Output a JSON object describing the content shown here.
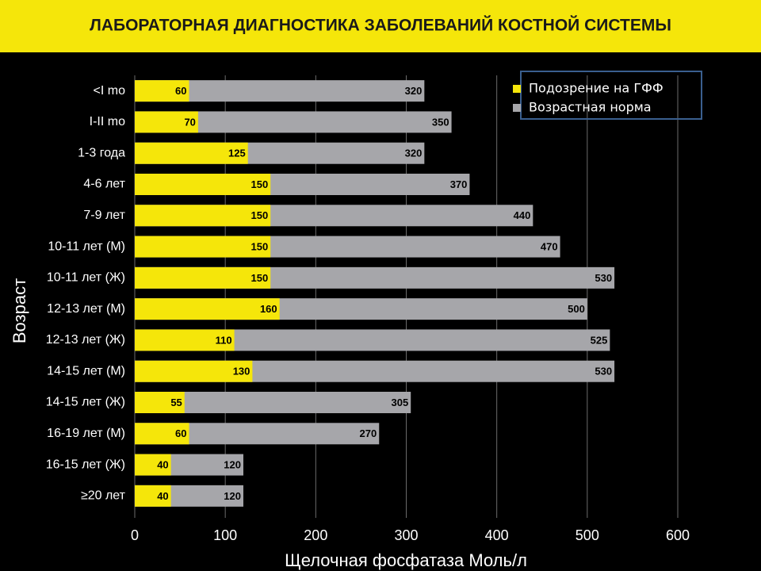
{
  "chart_data": {
    "type": "bar",
    "orientation": "horizontal",
    "overlap": true,
    "title": "ЛАБОРАТОРНАЯ ДИАГНОСТИКА ЗАБОЛЕВАНИЙ КОСТНОЙ СИСТЕМЫ",
    "x_label": "Щелочная фосфатаза Моль/л",
    "y_label": "Возраст",
    "categories": [
      "<I mo",
      "I-II mo",
      "1-3 года",
      "4-6 лет",
      "7-9 лет",
      "10-11 лет (М)",
      "10-11 лет (Ж)",
      "12-13 лет (М)",
      "12-13 лет (Ж)",
      "14-15 лет (М)",
      "14-15 лет (Ж)",
      "16-19 лет (М)",
      "16-15 лет (Ж)",
      "≥20 лет"
    ],
    "series": [
      {
        "name": "Подозрение на ГФФ",
        "color": "#f5e60a",
        "values": [
          60,
          70,
          125,
          150,
          150,
          150,
          150,
          160,
          110,
          130,
          55,
          60,
          40,
          40
        ]
      },
      {
        "name": "Возрастная норма",
        "color": "#a6a6aa",
        "values": [
          320,
          350,
          320,
          370,
          440,
          470,
          530,
          500,
          525,
          530,
          305,
          270,
          120,
          120
        ]
      }
    ],
    "xlim": [
      0,
      600
    ],
    "xticks": [
      0,
      100,
      200,
      300,
      400,
      500,
      600
    ],
    "grid": true,
    "legend": "upper right"
  }
}
